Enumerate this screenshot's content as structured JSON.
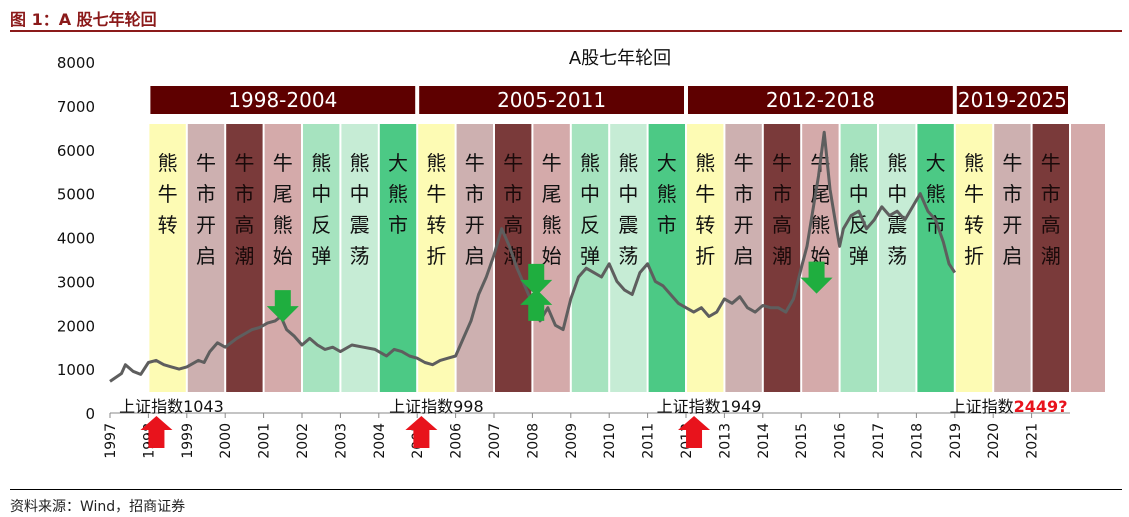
{
  "figure": {
    "caption": "图 1：A 股七年轮回",
    "source": "资料来源：Wind，招商证券"
  },
  "colors": {
    "brand": "#8b1a1a",
    "era_header": "#5e0000",
    "index_line": "#5e5e5e",
    "arrow_up": "#e8131c",
    "arrow_down": "#1fae3f",
    "bear_to_bull": "#fdfbb4",
    "bull_start": "#cdb0b0",
    "bull_peak": "#7a3a3a",
    "bull_end": "#d4aaaa",
    "rebound": "#a6e3bf",
    "volatile": "#c6ecd5",
    "big_bear": "#4cc985"
  },
  "chart_data": {
    "type": "line",
    "title": "A股七年轮回",
    "xlabel": "",
    "ylabel": "",
    "xlim": [
      1997,
      2022
    ],
    "ylim": [
      0,
      8000
    ],
    "yticks": [
      0,
      1000,
      2000,
      3000,
      4000,
      5000,
      6000,
      7000,
      8000
    ],
    "xticks": [
      "1997",
      "1998",
      "1999",
      "2000",
      "2001",
      "2002",
      "2003",
      "2004",
      "2005",
      "2006",
      "2007",
      "2008",
      "2009",
      "2010",
      "2011",
      "2012",
      "2013",
      "2014",
      "2015",
      "2016",
      "2017",
      "2018",
      "2019",
      "2020",
      "2021"
    ],
    "grid": false,
    "eras": [
      {
        "label": "1998-2004",
        "start": 1998.0,
        "end": 2005.0
      },
      {
        "label": "2005-2011",
        "start": 2005.0,
        "end": 2012.0
      },
      {
        "label": "2012-2018",
        "start": 2012.0,
        "end": 2019.0
      },
      {
        "label": "2019-2025",
        "start": 2019.0,
        "end": 2022.0
      }
    ],
    "phases": [
      {
        "label": "熊牛转",
        "start": 1998.0,
        "end": 1999.0,
        "kind": "bear_to_bull"
      },
      {
        "label": "牛市开启",
        "start": 1999.0,
        "end": 2000.0,
        "kind": "bull_start"
      },
      {
        "label": "牛市高潮",
        "start": 2000.0,
        "end": 2001.0,
        "kind": "bull_peak"
      },
      {
        "label": "牛尾熊始",
        "start": 2001.0,
        "end": 2002.0,
        "kind": "bull_end"
      },
      {
        "label": "熊中反弹",
        "start": 2002.0,
        "end": 2003.0,
        "kind": "rebound"
      },
      {
        "label": "熊中震荡",
        "start": 2003.0,
        "end": 2004.0,
        "kind": "volatile"
      },
      {
        "label": "大熊市",
        "start": 2004.0,
        "end": 2005.0,
        "kind": "big_bear"
      },
      {
        "label": "熊牛转折",
        "start": 2005.0,
        "end": 2006.0,
        "kind": "bear_to_bull"
      },
      {
        "label": "牛市开启",
        "start": 2006.0,
        "end": 2007.0,
        "kind": "bull_start"
      },
      {
        "label": "牛市高潮",
        "start": 2007.0,
        "end": 2008.0,
        "kind": "bull_peak"
      },
      {
        "label": "牛尾熊始",
        "start": 2008.0,
        "end": 2009.0,
        "kind": "bull_end"
      },
      {
        "label": "熊中反弹",
        "start": 2009.0,
        "end": 2010.0,
        "kind": "rebound"
      },
      {
        "label": "熊中震荡",
        "start": 2010.0,
        "end": 2011.0,
        "kind": "volatile"
      },
      {
        "label": "大熊市",
        "start": 2011.0,
        "end": 2012.0,
        "kind": "big_bear"
      },
      {
        "label": "熊牛转折",
        "start": 2012.0,
        "end": 2013.0,
        "kind": "bear_to_bull"
      },
      {
        "label": "牛市开启",
        "start": 2013.0,
        "end": 2014.0,
        "kind": "bull_start"
      },
      {
        "label": "牛市高潮",
        "start": 2014.0,
        "end": 2015.0,
        "kind": "bull_peak"
      },
      {
        "label": "牛尾熊始",
        "start": 2015.0,
        "end": 2016.0,
        "kind": "bull_end"
      },
      {
        "label": "熊中反弹",
        "start": 2016.0,
        "end": 2017.0,
        "kind": "rebound"
      },
      {
        "label": "熊中震荡",
        "start": 2017.0,
        "end": 2018.0,
        "kind": "volatile"
      },
      {
        "label": "大熊市",
        "start": 2018.0,
        "end": 2019.0,
        "kind": "big_bear"
      },
      {
        "label": "熊牛转折",
        "start": 2019.0,
        "end": 2020.0,
        "kind": "bear_to_bull"
      },
      {
        "label": "牛市开启",
        "start": 2020.0,
        "end": 2021.0,
        "kind": "bull_start"
      },
      {
        "label": "牛市高潮",
        "start": 2021.0,
        "end": 2022.0,
        "kind": "bull_peak"
      },
      {
        "label": "",
        "start": 2022.0,
        "end": 2023.0,
        "kind": "bull_end"
      }
    ],
    "series": [
      {
        "name": "",
        "x": [
          1997.0,
          1997.3,
          1997.4,
          1997.6,
          1997.8,
          1998.0,
          1998.2,
          1998.4,
          1998.6,
          1998.8,
          1999.0,
          1999.3,
          1999.45,
          1999.6,
          1999.8,
          2000.0,
          2000.3,
          2000.5,
          2000.7,
          2000.9,
          2001.1,
          2001.3,
          2001.45,
          2001.6,
          2001.8,
          2002.0,
          2002.2,
          2002.4,
          2002.6,
          2002.8,
          2003.0,
          2003.3,
          2003.6,
          2003.9,
          2004.2,
          2004.4,
          2004.6,
          2004.8,
          2005.0,
          2005.2,
          2005.4,
          2005.6,
          2005.8,
          2006.0,
          2006.2,
          2006.4,
          2006.6,
          2006.8,
          2007.0,
          2007.2,
          2007.4,
          2007.6,
          2007.8,
          2008.0,
          2008.2,
          2008.4,
          2008.6,
          2008.8,
          2009.0,
          2009.2,
          2009.4,
          2009.6,
          2009.8,
          2010.0,
          2010.2,
          2010.4,
          2010.6,
          2010.8,
          2011.0,
          2011.2,
          2011.4,
          2011.6,
          2011.8,
          2012.0,
          2012.2,
          2012.4,
          2012.6,
          2012.8,
          2013.0,
          2013.2,
          2013.4,
          2013.6,
          2013.8,
          2014.0,
          2014.2,
          2014.4,
          2014.6,
          2014.8,
          2015.0,
          2015.15,
          2015.3,
          2015.45,
          2015.6,
          2015.75,
          2015.9,
          2016.0,
          2016.1,
          2016.3,
          2016.5,
          2016.7,
          2016.9,
          2017.1,
          2017.3,
          2017.5,
          2017.7,
          2017.9,
          2018.1,
          2018.3,
          2018.5,
          2018.7,
          2018.85,
          2019.0
        ],
        "y": [
          720,
          900,
          1100,
          950,
          880,
          1150,
          1200,
          1100,
          1050,
          1000,
          1050,
          1200,
          1150,
          1400,
          1600,
          1500,
          1700,
          1800,
          1900,
          1950,
          2050,
          2100,
          2200,
          1900,
          1750,
          1550,
          1700,
          1550,
          1450,
          1500,
          1400,
          1550,
          1500,
          1450,
          1300,
          1450,
          1400,
          1300,
          1250,
          1150,
          1100,
          1200,
          1250,
          1300,
          1700,
          2100,
          2700,
          3100,
          3600,
          4200,
          3800,
          3300,
          2900,
          2500,
          2100,
          2400,
          2000,
          1900,
          2600,
          3100,
          3300,
          3200,
          3100,
          3400,
          3000,
          2800,
          2700,
          3200,
          3400,
          3000,
          2900,
          2700,
          2500,
          2400,
          2300,
          2400,
          2200,
          2300,
          2600,
          2500,
          2650,
          2400,
          2300,
          2450,
          2400,
          2400,
          2300,
          2600,
          3300,
          3800,
          4600,
          5400,
          6400,
          5100,
          4300,
          3800,
          4200,
          4500,
          4600,
          4200,
          4400,
          4700,
          4500,
          4600,
          4400,
          4700,
          5000,
          4600,
          4400,
          3900,
          3400,
          3200
        ]
      }
    ],
    "annotations": [
      {
        "text": "上证指数1043",
        "year": 1998.6,
        "arrow": "up"
      },
      {
        "text": "上证指数998",
        "year": 2005.5,
        "arrow": "up"
      },
      {
        "text": "上证指数1949",
        "year": 2012.6,
        "arrow": "up"
      },
      {
        "text": "上证指数",
        "highlight": "2449?",
        "year": 2020.4,
        "arrow": "none"
      }
    ],
    "down_arrows": [
      {
        "year": 2001.5,
        "value": 2800
      },
      {
        "year": 2008.1,
        "value": 3400
      },
      {
        "year": 2015.4,
        "value": 3450
      }
    ],
    "up_arrows_mid": [
      {
        "year": 2008.1,
        "value": 2100
      }
    ]
  }
}
